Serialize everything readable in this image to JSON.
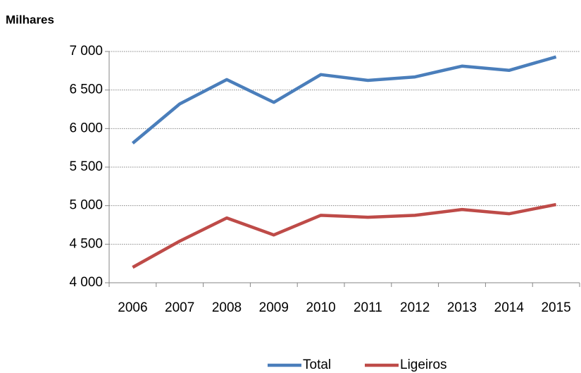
{
  "chart_data": {
    "type": "line",
    "title": "Milhares",
    "categories": [
      "2006",
      "2007",
      "2008",
      "2009",
      "2010",
      "2011",
      "2012",
      "2013",
      "2014",
      "2015"
    ],
    "series": [
      {
        "name": "Total",
        "color": "#4a7ebb",
        "values": [
          5810,
          6320,
          6635,
          6340,
          6700,
          6625,
          6670,
          6810,
          6755,
          6930
        ]
      },
      {
        "name": "Ligeiros",
        "color": "#be4b48",
        "values": [
          4200,
          4540,
          4840,
          4620,
          4875,
          4850,
          4875,
          4950,
          4895,
          5015
        ]
      }
    ],
    "ylim": [
      4000,
      7000
    ],
    "yticks": [
      {
        "value": 4000,
        "label": "4 000"
      },
      {
        "value": 4500,
        "label": "4 500"
      },
      {
        "value": 5000,
        "label": "5 000"
      },
      {
        "value": 5500,
        "label": "5 500"
      },
      {
        "value": 6000,
        "label": "6 000"
      },
      {
        "value": 6500,
        "label": "6 500"
      },
      {
        "value": 7000,
        "label": "7 000"
      }
    ],
    "grid": true,
    "legend": "bottom"
  }
}
